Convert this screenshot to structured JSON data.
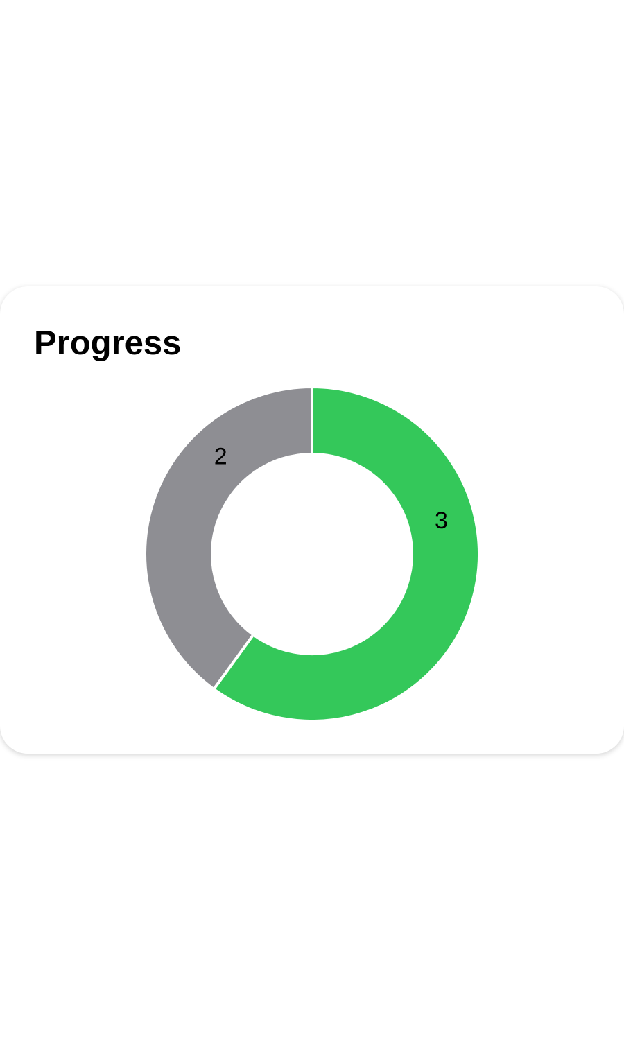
{
  "card": {
    "title": "Progress"
  },
  "chart_data": {
    "type": "pie",
    "variant": "donut",
    "series": [
      {
        "value": 3,
        "color": "#34C85A",
        "label": "3"
      },
      {
        "value": 2,
        "color": "#8E8E93",
        "label": "2"
      }
    ],
    "start_angle": "top",
    "direction": "clockwise",
    "legend": "none"
  }
}
